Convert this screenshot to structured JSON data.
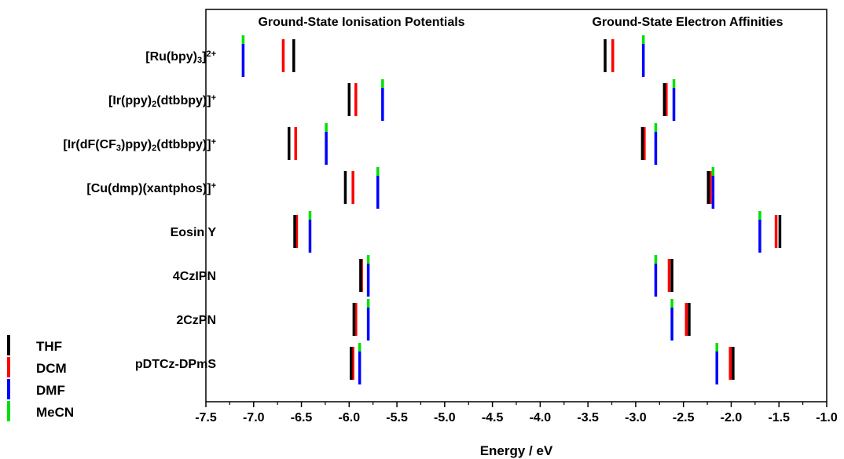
{
  "chart_data": {
    "type": "scatter",
    "xlabel": "Energy / eV",
    "xlim": [
      -7.5,
      -1.0
    ],
    "xticks": [
      "-7.5",
      "-7.0",
      "-6.5",
      "-6.0",
      "-5.5",
      "-5.0",
      "-4.5",
      "-4.0",
      "-3.5",
      "-3.0",
      "-2.5",
      "-2.0",
      "-1.5",
      "-1.0"
    ],
    "section_titles": [
      "Ground-State Ionisation Potentials",
      "Ground-State Electron Affinities"
    ],
    "legend_placement": "bottom-left",
    "series": [
      {
        "name": "THF",
        "color": "#000000"
      },
      {
        "name": "DCM",
        "color": "#ff0000"
      },
      {
        "name": "DMF",
        "color": "#0000ff"
      },
      {
        "name": "MeCN",
        "color": "#00e000"
      }
    ],
    "compounds": [
      {
        "label_parts": [
          [
            "[Ru(bpy)",
            ""
          ],
          [
            "3",
            "sub"
          ],
          [
            "]",
            ""
          ],
          [
            "2+",
            "sup"
          ]
        ],
        "IP": {
          "THF": -6.58,
          "DCM": -6.69,
          "DMF": -7.11,
          "MeCN": -7.11
        },
        "EA": {
          "THF": -3.32,
          "DCM": -3.24,
          "DMF": -2.92,
          "MeCN": -2.92
        }
      },
      {
        "label_parts": [
          [
            "[Ir(ppy)",
            ""
          ],
          [
            "2",
            "sub"
          ],
          [
            "(dtbbpy)]",
            ""
          ],
          [
            "+",
            "sup"
          ]
        ],
        "IP": {
          "THF": -6.0,
          "DCM": -5.93,
          "DMF": -5.65,
          "MeCN": -5.65
        },
        "EA": {
          "THF": -2.7,
          "DCM": -2.68,
          "DMF": -2.6,
          "MeCN": -2.6
        }
      },
      {
        "label_parts": [
          [
            "[Ir(dF(CF",
            ""
          ],
          [
            "3",
            "sub"
          ],
          [
            ")ppy)",
            ""
          ],
          [
            "2",
            "sub"
          ],
          [
            "(dtbbpy)]",
            ""
          ],
          [
            "+",
            "sup"
          ]
        ],
        "IP": {
          "THF": -6.63,
          "DCM": -6.56,
          "DMF": -6.24,
          "MeCN": -6.24
        },
        "EA": {
          "THF": -2.93,
          "DCM": -2.91,
          "DMF": -2.79,
          "MeCN": -2.79
        }
      },
      {
        "label_parts": [
          [
            "[Cu(dmp)(xantphos)]",
            ""
          ],
          [
            "+",
            "sup"
          ]
        ],
        "IP": {
          "THF": -6.04,
          "DCM": -5.96,
          "DMF": -5.7,
          "MeCN": -5.7
        },
        "EA": {
          "THF": -2.24,
          "DCM": -2.22,
          "DMF": -2.19,
          "MeCN": -2.19
        }
      },
      {
        "label_parts": [
          [
            "Eosin Y",
            ""
          ]
        ],
        "IP": {
          "THF": -6.57,
          "DCM": -6.55,
          "DMF": -6.41,
          "MeCN": -6.41
        },
        "EA": {
          "THF": -1.49,
          "DCM": -1.53,
          "DMF": -1.7,
          "MeCN": -1.7
        }
      },
      {
        "label_parts": [
          [
            "4CzIPN",
            ""
          ]
        ],
        "IP": {
          "THF": -5.88,
          "DCM": -5.87,
          "DMF": -5.8,
          "MeCN": -5.8
        },
        "EA": {
          "THF": -2.62,
          "DCM": -2.65,
          "DMF": -2.79,
          "MeCN": -2.79
        }
      },
      {
        "label_parts": [
          [
            "2CzPN",
            ""
          ]
        ],
        "IP": {
          "THF": -5.95,
          "DCM": -5.93,
          "DMF": -5.8,
          "MeCN": -5.8
        },
        "EA": {
          "THF": -2.44,
          "DCM": -2.47,
          "DMF": -2.62,
          "MeCN": -2.62
        }
      },
      {
        "label_parts": [
          [
            "pDTCz-DPmS",
            ""
          ]
        ],
        "IP": {
          "THF": -5.98,
          "DCM": -5.96,
          "DMF": -5.89,
          "MeCN": -5.89
        },
        "EA": {
          "THF": -1.98,
          "DCM": -2.01,
          "DMF": -2.15,
          "MeCN": -2.15
        }
      }
    ]
  }
}
